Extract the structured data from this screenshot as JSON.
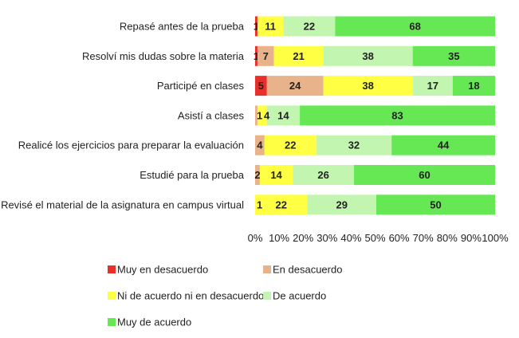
{
  "chart_data": {
    "type": "bar",
    "orientation": "horizontal",
    "stacked": "percent",
    "categories": [
      "Repasé antes de la prueba",
      "Resolví mis dudas sobre la materia",
      "Participé en clases",
      "Asistí a clases",
      "Realicé los ejercicios para preparar la evaluación",
      "Estudié para la prueba",
      "Revisé el material de la asignatura en campus virtual"
    ],
    "series": [
      {
        "name": "Muy en desacuerdo",
        "color": "#e8302a",
        "values": [
          1,
          1,
          5,
          0,
          0,
          0,
          0
        ],
        "labels": [
          "1",
          "1",
          "5",
          "",
          "",
          "",
          ""
        ]
      },
      {
        "name": "En desacuerdo",
        "color": "#e8b28a",
        "values": [
          0,
          7,
          24,
          1,
          4,
          2,
          0
        ],
        "labels": [
          "",
          "7",
          "24",
          "",
          "4",
          "2",
          ""
        ]
      },
      {
        "name": "Ni de acuerdo ni en desacuerdo",
        "color": "#ffff44",
        "values": [
          11,
          21,
          38,
          4,
          22,
          14,
          22
        ],
        "labels": [
          "11",
          "21",
          "38",
          "",
          "22",
          "14",
          "22"
        ]
      },
      {
        "name": "De acuerdo",
        "color": "#c2f5b0",
        "values": [
          22,
          38,
          17,
          14,
          32,
          26,
          29
        ],
        "labels": [
          "22",
          "38",
          "17",
          "14",
          "32",
          "26",
          "29"
        ]
      },
      {
        "name": "Muy de acuerdo",
        "color": "#66e855",
        "values": [
          68,
          35,
          18,
          83,
          44,
          60,
          50
        ],
        "labels": [
          "68",
          "35",
          "18",
          "83",
          "44",
          "60",
          "50"
        ]
      }
    ],
    "extra_labels": [
      {
        "category_index": 3,
        "text": "1"
      },
      {
        "category_index": 3,
        "text": "4"
      },
      {
        "category_index": 6,
        "text": "1"
      }
    ],
    "x_ticks": [
      "0%",
      "10%",
      "20%",
      "30%",
      "40%",
      "50%",
      "60%",
      "70%",
      "80%",
      "90%",
      "100%"
    ],
    "xlim": [
      0,
      100
    ],
    "title": "",
    "xlabel": "",
    "ylabel": "",
    "grid": false,
    "legend_position": "bottom-left"
  }
}
